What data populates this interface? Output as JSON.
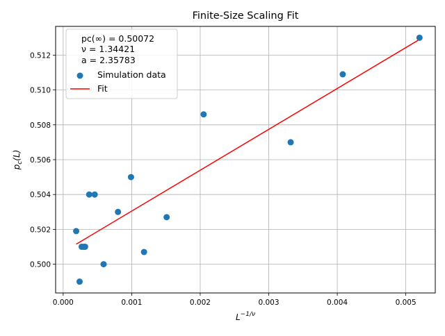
{
  "chart_data": {
    "type": "scatter",
    "title": "Finite-Size Scaling Fit",
    "xlabel_base": "L",
    "xlabel_sup": "−1/ν",
    "ylabel_main": "p",
    "ylabel_sub": "c",
    "ylabel_tail": "(L)",
    "xlim": [
      -0.00011,
      0.00543
    ],
    "ylim": [
      0.49835,
      0.51365
    ],
    "xticks": [
      0.0,
      0.001,
      0.002,
      0.003,
      0.004,
      0.005
    ],
    "xtick_labels": [
      "0.000",
      "0.001",
      "0.002",
      "0.003",
      "0.004",
      "0.005"
    ],
    "yticks": [
      0.5,
      0.502,
      0.504,
      0.506,
      0.508,
      0.51,
      0.512
    ],
    "ytick_labels": [
      "0.500",
      "0.502",
      "0.504",
      "0.506",
      "0.508",
      "0.510",
      "0.512"
    ],
    "grid": true,
    "legend_position": "top-left",
    "annotation_lines": [
      "pc(∞) = 0.50072",
      "ν = 1.34421",
      "a = 2.35783"
    ],
    "series": [
      {
        "name": "Simulation data",
        "kind": "scatter",
        "color": "#1f77b4",
        "x": [
          0.00019,
          0.00024,
          0.00027,
          0.0003,
          0.00032,
          0.00038,
          0.00046,
          0.00059,
          0.0008,
          0.00099,
          0.00118,
          0.00151,
          0.00205,
          0.00332,
          0.00408,
          0.0052
        ],
        "y": [
          0.5019,
          0.499,
          0.501,
          0.501,
          0.501,
          0.504,
          0.504,
          0.5,
          0.503,
          0.505,
          0.5007,
          0.5027,
          0.5086,
          0.507,
          0.5109,
          0.513
        ]
      },
      {
        "name": "Fit",
        "kind": "line",
        "color": "#ff0000",
        "x": [
          0.00019,
          0.0052
        ],
        "y": [
          0.50115,
          0.5129
        ]
      }
    ]
  }
}
